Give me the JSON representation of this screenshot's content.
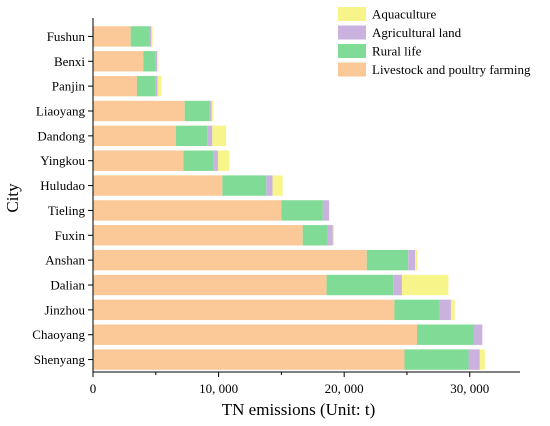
{
  "chart_data": {
    "type": "bar",
    "orientation": "horizontal",
    "stacked": true,
    "categories": [
      "Fushun",
      "Benxi",
      "Panjin",
      "Liaoyang",
      "Dandong",
      "Yingkou",
      "Huludao",
      "Tieling",
      "Fuxin",
      "Anshan",
      "Dalian",
      "Jinzhou",
      "Chaoyang",
      "Shenyang"
    ],
    "series": [
      {
        "name": "Livestock and poultry farming",
        "color": "#FBC897",
        "values": [
          3000,
          4000,
          3500,
          7300,
          6600,
          7200,
          10300,
          15000,
          16700,
          21800,
          18600,
          24000,
          25800,
          24800
        ]
      },
      {
        "name": "Rural life",
        "color": "#7FDB95",
        "values": [
          1500,
          1000,
          1500,
          2000,
          2500,
          2400,
          3500,
          3300,
          2000,
          3300,
          5300,
          3600,
          4500,
          5100
        ]
      },
      {
        "name": "Agricultural land",
        "color": "#C9B3DE",
        "values": [
          150,
          100,
          150,
          150,
          400,
          350,
          500,
          500,
          400,
          550,
          700,
          900,
          700,
          900
        ]
      },
      {
        "name": "Aquaculture",
        "color": "#F7F58A",
        "values": [
          100,
          100,
          300,
          100,
          1100,
          900,
          800,
          0,
          100,
          200,
          3700,
          300,
          0,
          400
        ]
      }
    ],
    "legend_order": [
      "Aquaculture",
      "Agricultural land",
      "Rural life",
      "Livestock and poultry farming"
    ],
    "xlim": [
      0,
      34000
    ],
    "xticks": [
      0,
      10000,
      20000,
      30000
    ],
    "xtick_labels": [
      "0",
      "10, 000",
      "20, 000",
      "30, 000"
    ],
    "xlabel": "TN emissions (Unit: t)",
    "ylabel": "City",
    "legend_position": "top-right",
    "grid": false
  }
}
